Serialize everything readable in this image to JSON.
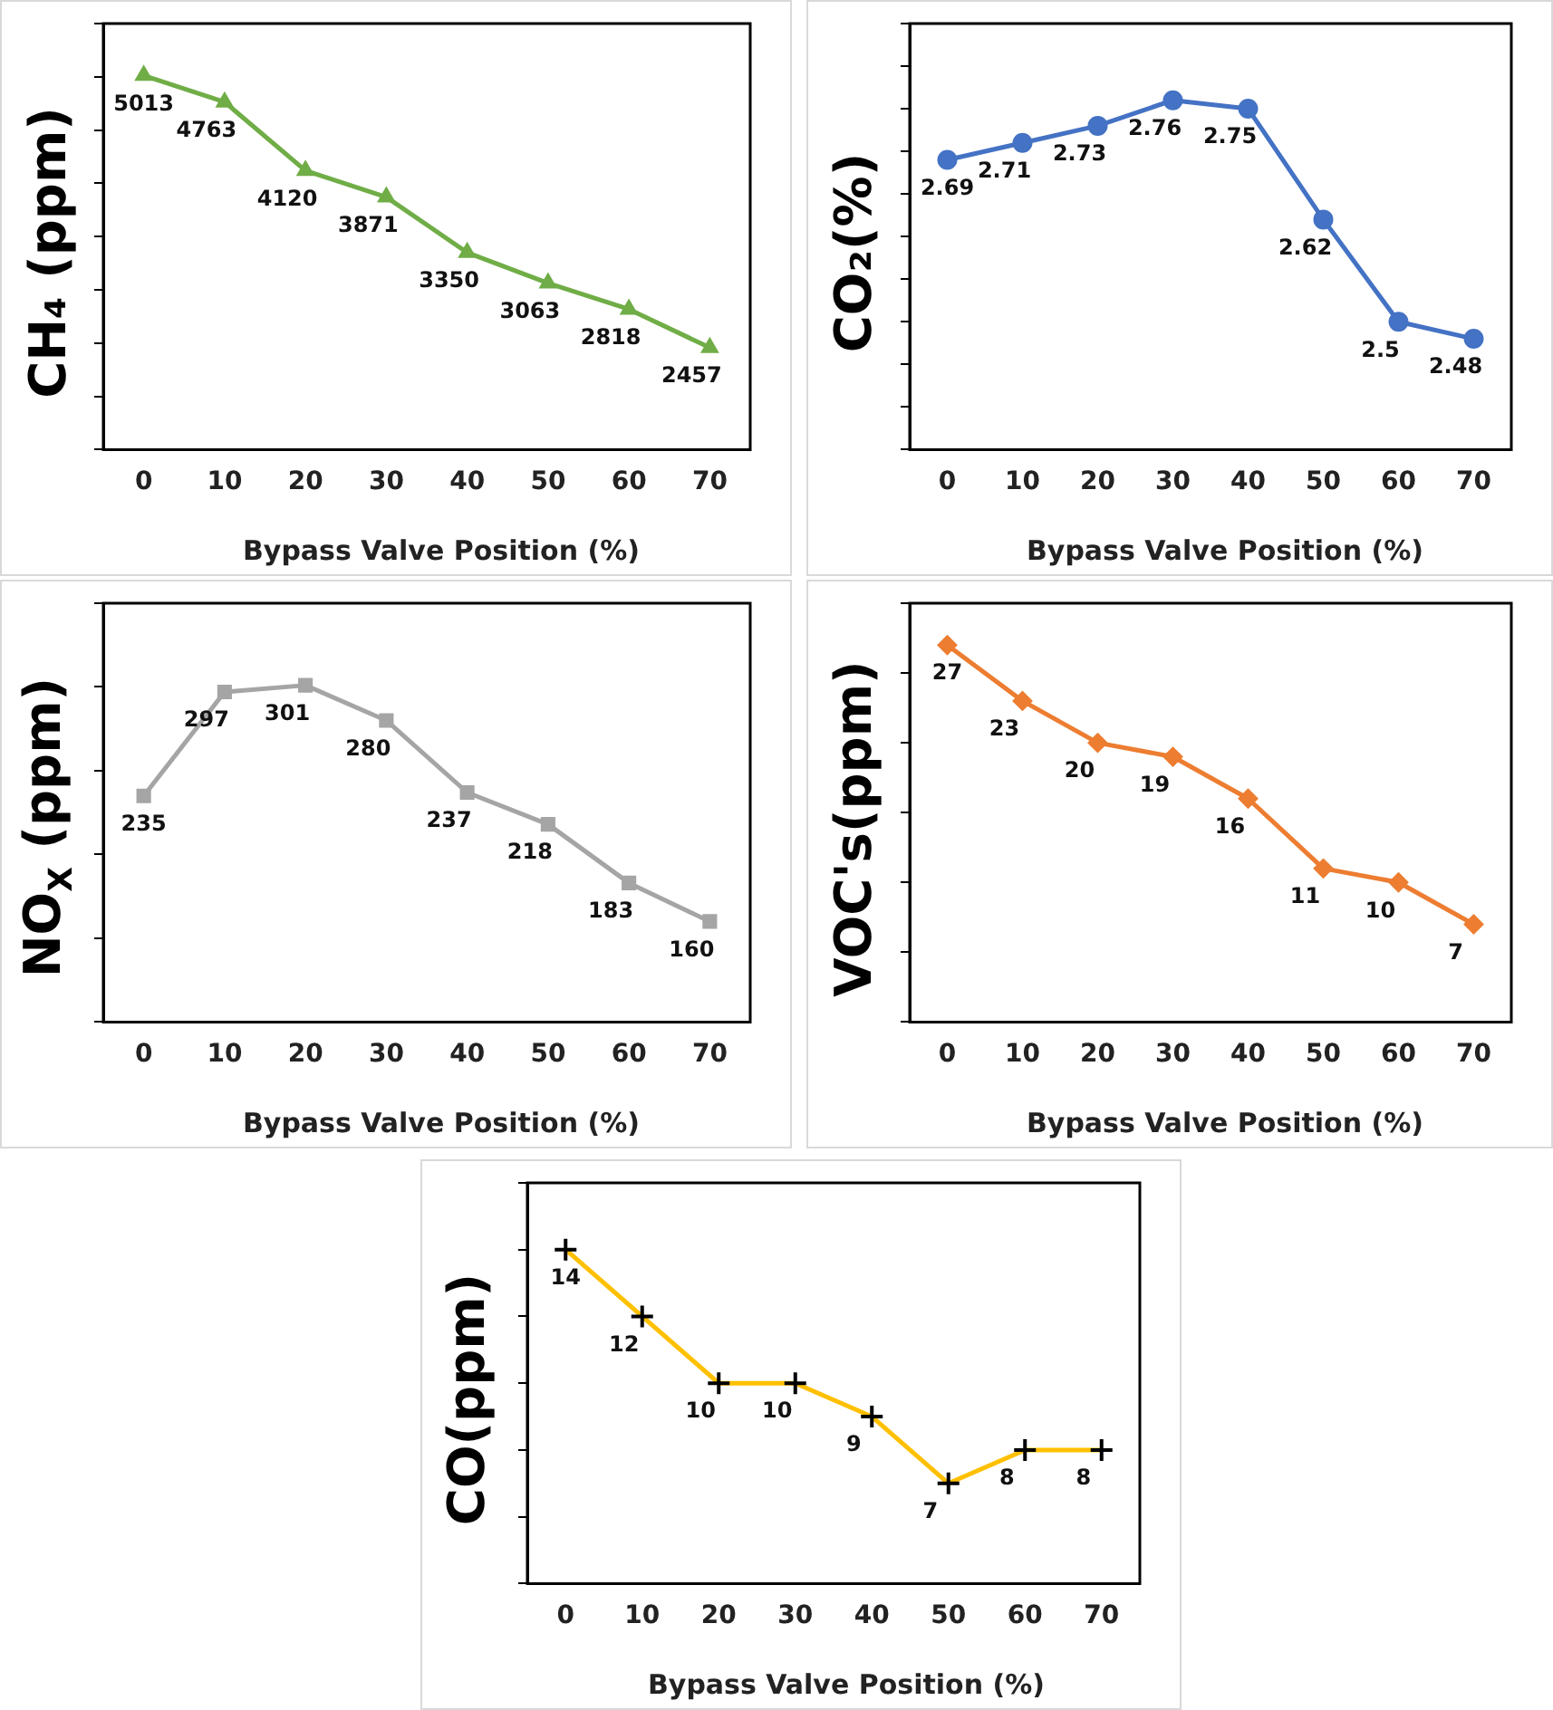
{
  "chart_data": [
    {
      "type": "line",
      "xlabel": "Bypass Valve Position (%)",
      "ylabel": "CH₄ (ppm)",
      "categories": [
        "0",
        "10",
        "20",
        "30",
        "40",
        "50",
        "60",
        "70"
      ],
      "series": [
        {
          "color": "#70ad47",
          "values": [
            5013,
            4763,
            4120,
            3871,
            3350,
            3063,
            2818,
            2457
          ]
        }
      ],
      "marker": "triangle",
      "data_labels": true,
      "tick_labels": "x",
      "grid": false,
      "legend": false
    },
    {
      "type": "line",
      "xlabel": "Bypass Valve Position (%)",
      "ylabel": "CO₂(%)",
      "categories": [
        "0",
        "10",
        "20",
        "30",
        "40",
        "50",
        "60",
        "70"
      ],
      "series": [
        {
          "color": "#4472c4",
          "values": [
            2.69,
            2.71,
            2.73,
            2.76,
            2.75,
            2.62,
            2.5,
            2.48
          ]
        }
      ],
      "marker": "circle",
      "data_labels": true,
      "tick_labels": "x",
      "grid": false,
      "legend": false
    },
    {
      "type": "line",
      "xlabel": "Bypass Valve Position (%)",
      "ylabel": "NO$_{X}$ (ppm)",
      "categories": [
        "0",
        "10",
        "20",
        "30",
        "40",
        "50",
        "60",
        "70"
      ],
      "series": [
        {
          "color": "#a5a5a5",
          "values": [
            235,
            297,
            301,
            280,
            237,
            218,
            183,
            160
          ]
        }
      ],
      "marker": "square",
      "data_labels": true,
      "tick_labels": "x",
      "grid": false,
      "legend": false
    },
    {
      "type": "line",
      "xlabel": "Bypass Valve Position (%)",
      "ylabel": "VOC's(ppm)",
      "categories": [
        "0",
        "10",
        "20",
        "30",
        "40",
        "50",
        "60",
        "70"
      ],
      "series": [
        {
          "color": "#ed7d31",
          "values": [
            27,
            23,
            20,
            19,
            16,
            11,
            10,
            7
          ]
        }
      ],
      "marker": "diamond",
      "data_labels": true,
      "tick_labels": "x",
      "grid": false,
      "legend": false
    },
    {
      "type": "line",
      "xlabel": "Bypass Valve Position (%)",
      "ylabel": "CO(ppm)",
      "categories": [
        "0",
        "10",
        "20",
        "30",
        "40",
        "50",
        "60",
        "70"
      ],
      "series": [
        {
          "color": "#ffc000",
          "values": [
            14,
            12,
            10,
            10,
            9,
            7,
            8,
            8
          ]
        }
      ],
      "marker": "cross",
      "data_labels": true,
      "tick_labels": "x",
      "grid": false,
      "legend": false
    }
  ]
}
